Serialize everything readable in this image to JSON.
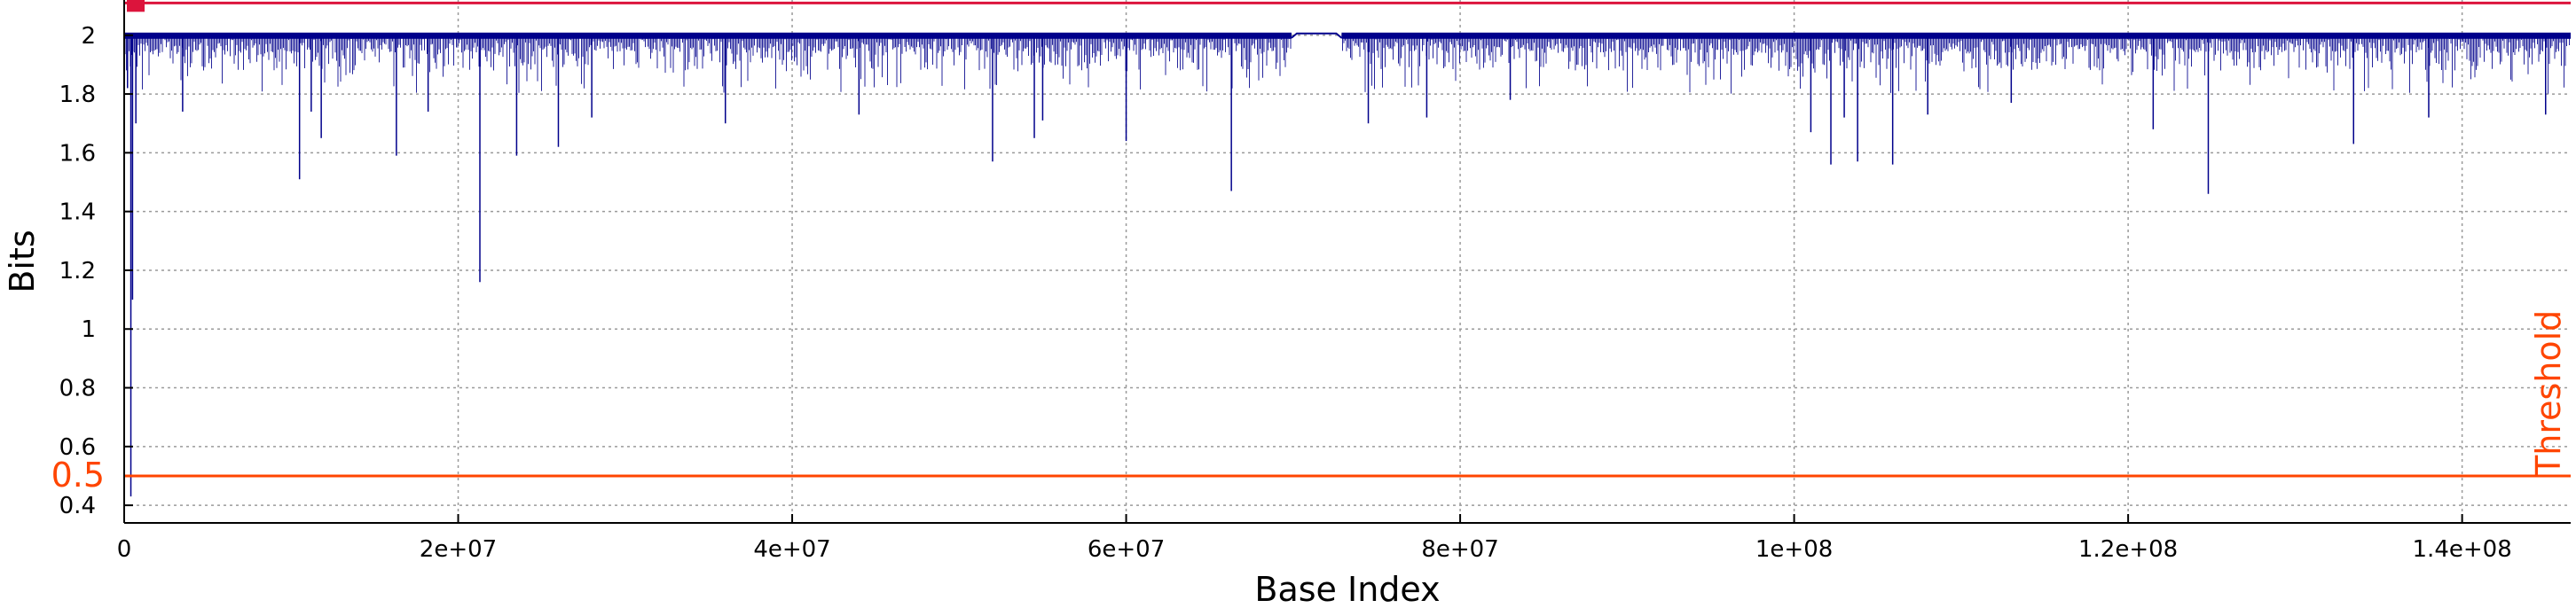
{
  "chart_data": {
    "type": "line",
    "title": "",
    "xlabel": "Base Index",
    "ylabel": "Bits",
    "xlim": [
      0,
      146500000
    ],
    "ylim": [
      0.34,
      2.12
    ],
    "grid": true,
    "x_ticks": [
      {
        "value": 0,
        "label": "0"
      },
      {
        "value": 20000000,
        "label": "2e+07"
      },
      {
        "value": 40000000,
        "label": "4e+07"
      },
      {
        "value": 60000000,
        "label": "6e+07"
      },
      {
        "value": 80000000,
        "label": "8e+07"
      },
      {
        "value": 100000000,
        "label": "1e+08"
      },
      {
        "value": 120000000,
        "label": "1.2e+08"
      },
      {
        "value": 140000000,
        "label": "1.4e+08"
      }
    ],
    "y_ticks": [
      {
        "value": 0.4,
        "label": "0.4"
      },
      {
        "value": 0.6,
        "label": "0.6"
      },
      {
        "value": 0.8,
        "label": "0.8"
      },
      {
        "value": 1.0,
        "label": "1"
      },
      {
        "value": 1.2,
        "label": "1.2"
      },
      {
        "value": 1.4,
        "label": "1.4"
      },
      {
        "value": 1.6,
        "label": "1.6"
      },
      {
        "value": 1.8,
        "label": "1.8"
      },
      {
        "value": 2.0,
        "label": "2"
      }
    ],
    "series": [
      {
        "color": "#00008b",
        "baseline_bits": 2.0,
        "gap_x": [
          69900000,
          72900000
        ],
        "dips": [
          [
            200000,
            1.82
          ],
          [
            400000,
            0.43
          ],
          [
            500000,
            1.1
          ],
          [
            700000,
            1.7
          ],
          [
            3500000,
            1.74
          ],
          [
            10500000,
            1.51
          ],
          [
            11200000,
            1.74
          ],
          [
            11800000,
            1.65
          ],
          [
            16300000,
            1.59
          ],
          [
            18200000,
            1.74
          ],
          [
            21300000,
            1.16
          ],
          [
            23500000,
            1.59
          ],
          [
            26000000,
            1.62
          ],
          [
            28000000,
            1.72
          ],
          [
            36000000,
            1.7
          ],
          [
            44000000,
            1.73
          ],
          [
            52000000,
            1.57
          ],
          [
            54500000,
            1.65
          ],
          [
            55000000,
            1.71
          ],
          [
            60000000,
            1.64
          ],
          [
            66300000,
            1.47
          ],
          [
            74500000,
            1.7
          ],
          [
            78000000,
            1.72
          ],
          [
            83000000,
            1.78
          ],
          [
            101000000,
            1.67
          ],
          [
            102200000,
            1.56
          ],
          [
            103000000,
            1.72
          ],
          [
            103800000,
            1.57
          ],
          [
            105900000,
            1.56
          ],
          [
            108000000,
            1.73
          ],
          [
            113000000,
            1.77
          ],
          [
            121500000,
            1.68
          ],
          [
            124800000,
            1.46
          ],
          [
            133500000,
            1.63
          ],
          [
            138000000,
            1.72
          ],
          [
            145000000,
            1.73
          ]
        ]
      }
    ],
    "annotations": [
      {
        "y": 2.11,
        "color": "#dc143c",
        "marker": true
      },
      {
        "y": 0.5,
        "color": "#ff4500",
        "value_label": "0.5",
        "text": "Threshold"
      }
    ]
  }
}
